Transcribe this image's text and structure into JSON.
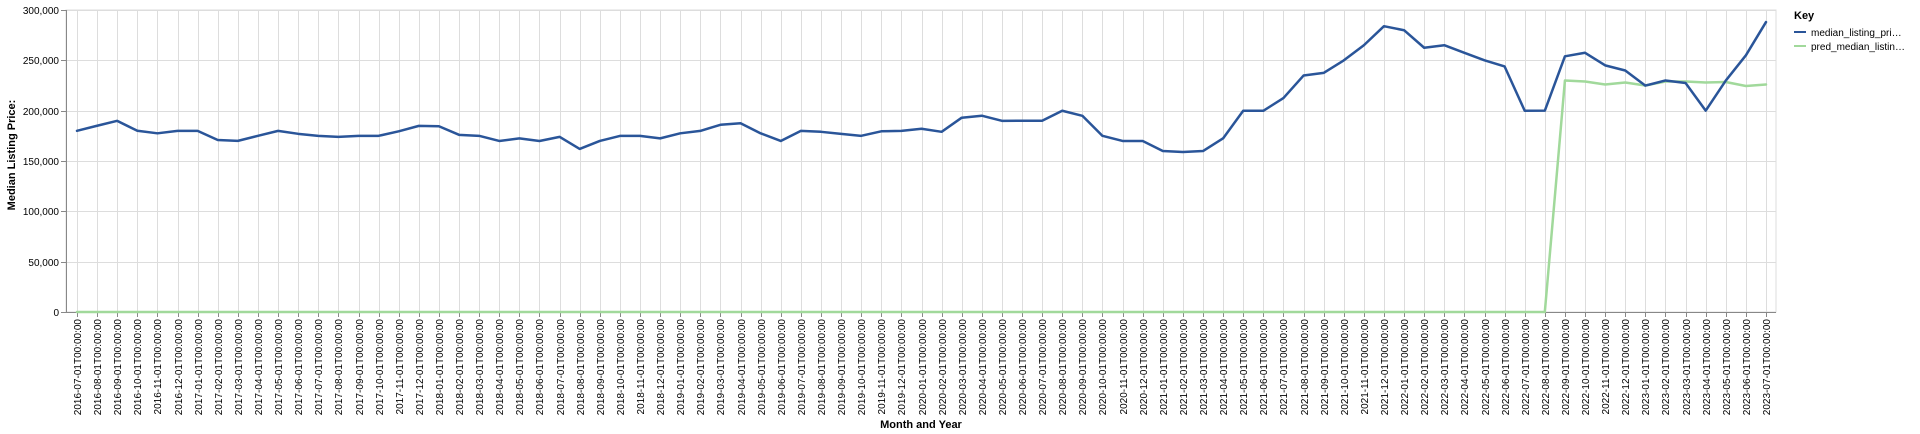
{
  "chart_data": {
    "type": "line",
    "xlabel": "Month and Year",
    "ylabel": "Median Listing Price:",
    "ylim": [
      0,
      300000
    ],
    "y_ticks": [
      "0",
      "50,000",
      "100,000",
      "150,000",
      "200,000",
      "250,000",
      "300,000"
    ],
    "grid": true,
    "legend_title": "Key",
    "legend_position": "top-right",
    "x": [
      "2016-07-01T00:00:00",
      "2016-08-01T00:00:00",
      "2016-09-01T00:00:00",
      "2016-10-01T00:00:00",
      "2016-11-01T00:00:00",
      "2016-12-01T00:00:00",
      "2017-01-01T00:00:00",
      "2017-02-01T00:00:00",
      "2017-03-01T00:00:00",
      "2017-04-01T00:00:00",
      "2017-05-01T00:00:00",
      "2017-06-01T00:00:00",
      "2017-07-01T00:00:00",
      "2017-08-01T00:00:00",
      "2017-09-01T00:00:00",
      "2017-10-01T00:00:00",
      "2017-11-01T00:00:00",
      "2017-12-01T00:00:00",
      "2018-01-01T00:00:00",
      "2018-02-01T00:00:00",
      "2018-03-01T00:00:00",
      "2018-04-01T00:00:00",
      "2018-05-01T00:00:00",
      "2018-06-01T00:00:00",
      "2018-07-01T00:00:00",
      "2018-08-01T00:00:00",
      "2018-09-01T00:00:00",
      "2018-10-01T00:00:00",
      "2018-11-01T00:00:00",
      "2018-12-01T00:00:00",
      "2019-01-01T00:00:00",
      "2019-02-01T00:00:00",
      "2019-03-01T00:00:00",
      "2019-04-01T00:00:00",
      "2019-05-01T00:00:00",
      "2019-06-01T00:00:00",
      "2019-07-01T00:00:00",
      "2019-08-01T00:00:00",
      "2019-09-01T00:00:00",
      "2019-10-01T00:00:00",
      "2019-11-01T00:00:00",
      "2019-12-01T00:00:00",
      "2020-01-01T00:00:00",
      "2020-02-01T00:00:00",
      "2020-03-01T00:00:00",
      "2020-04-01T00:00:00",
      "2020-05-01T00:00:00",
      "2020-06-01T00:00:00",
      "2020-07-01T00:00:00",
      "2020-08-01T00:00:00",
      "2020-09-01T00:00:00",
      "2020-10-01T00:00:00",
      "2020-11-01T00:00:00",
      "2020-12-01T00:00:00",
      "2021-01-01T00:00:00",
      "2021-02-01T00:00:00",
      "2021-03-01T00:00:00",
      "2021-04-01T00:00:00",
      "2021-05-01T00:00:00",
      "2021-06-01T00:00:00",
      "2021-07-01T00:00:00",
      "2021-08-01T00:00:00",
      "2021-09-01T00:00:00",
      "2021-10-01T00:00:00",
      "2021-11-01T00:00:00",
      "2021-12-01T00:00:00",
      "2022-01-01T00:00:00",
      "2022-02-01T00:00:00",
      "2022-03-01T00:00:00",
      "2022-04-01T00:00:00",
      "2022-05-01T00:00:00",
      "2022-06-01T00:00:00",
      "2022-07-01T00:00:00",
      "2022-08-01T00:00:00",
      "2022-09-01T00:00:00",
      "2022-10-01T00:00:00",
      "2022-11-01T00:00:00",
      "2022-12-01T00:00:00",
      "2023-01-01T00:00:00",
      "2023-02-01T00:00:00",
      "2023-03-01T00:00:00",
      "2023-04-01T00:00:00",
      "2023-05-01T00:00:00",
      "2023-06-01T00:00:00",
      "2023-07-01T00:00:00"
    ],
    "series": [
      {
        "name": "median_listing_pri…",
        "color": "#2a5599",
        "values": [
          180000,
          185000,
          189900,
          180000,
          177500,
          179900,
          179900,
          170900,
          170000,
          175000,
          179900,
          177000,
          175000,
          174000,
          175000,
          175000,
          179500,
          184900,
          184500,
          176000,
          175000,
          169900,
          172500,
          169900,
          174000,
          162000,
          169900,
          174900,
          175000,
          172500,
          177500,
          179900,
          186000,
          187500,
          177500,
          169900,
          179900,
          179000,
          177000,
          175000,
          179500,
          179900,
          182000,
          179000,
          193000,
          195000,
          189900,
          190000,
          190000,
          199900,
          194900,
          175000,
          169900,
          169900,
          159900,
          159000,
          159900,
          172500,
          199900,
          199900,
          212500,
          234900,
          237500,
          249900,
          265000,
          283900,
          279900,
          262500,
          265000,
          257500,
          250000,
          243900,
          199900,
          200000,
          254000,
          257500,
          245000,
          239900,
          224900,
          230000,
          227500,
          200000,
          229900,
          255000,
          288000
        ]
      },
      {
        "name": "pred_median_listin…",
        "color": "#a1d99b",
        "values": [
          0,
          0,
          0,
          0,
          0,
          0,
          0,
          0,
          0,
          0,
          0,
          0,
          0,
          0,
          0,
          0,
          0,
          0,
          0,
          0,
          0,
          0,
          0,
          0,
          0,
          0,
          0,
          0,
          0,
          0,
          0,
          0,
          0,
          0,
          0,
          0,
          0,
          0,
          0,
          0,
          0,
          0,
          0,
          0,
          0,
          0,
          0,
          0,
          0,
          0,
          0,
          0,
          0,
          0,
          0,
          0,
          0,
          0,
          0,
          0,
          0,
          0,
          0,
          0,
          0,
          0,
          0,
          0,
          0,
          0,
          0,
          0,
          0,
          0,
          230000,
          229000,
          226000,
          228000,
          225000,
          229000,
          229000,
          228000,
          228500,
          224500,
          226000
        ]
      }
    ]
  }
}
